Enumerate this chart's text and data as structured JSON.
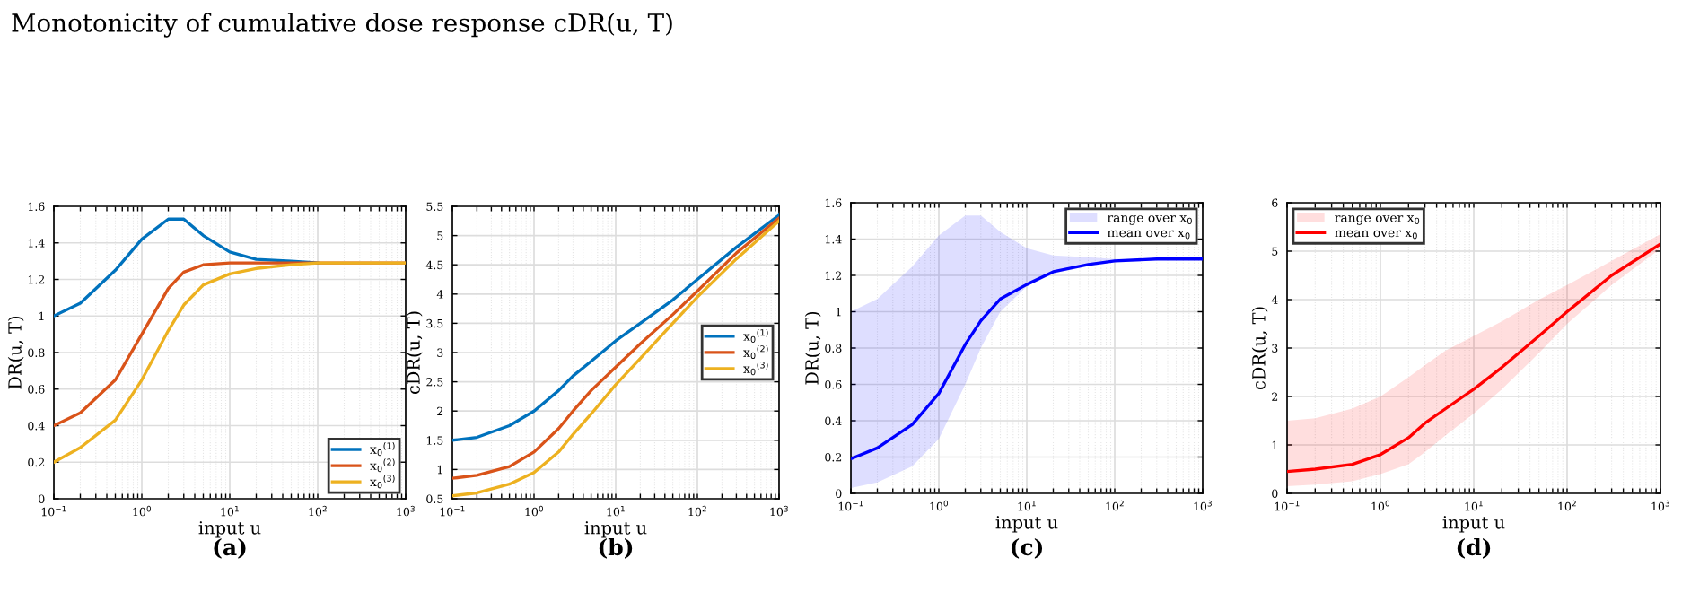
{
  "chart_data": [
    {
      "type": "line",
      "title": "Monotonicity of cumulative dose response cDR(u, T)",
      "xlabel": "input u",
      "ylabel": "DR(u, T)",
      "annotations": [
        "(a)"
      ],
      "log": "x",
      "grid": true,
      "legend": "bottom right",
      "x": [
        0.1,
        0.2,
        0.5,
        1,
        2,
        3,
        5,
        10,
        20,
        50,
        100,
        300,
        1000
      ],
      "xlim": [
        0.1,
        1000
      ],
      "xticks": [
        {
          "value": 0.1,
          "label": "10$^{−1}$"
        },
        {
          "value": 1,
          "label": "10$^{0}$"
        },
        {
          "value": 10,
          "label": "10$^{1}$"
        },
        {
          "value": 100,
          "label": "10$^{2}$"
        },
        {
          "value": 1000,
          "label": "10$^{3}$"
        }
      ],
      "ylim": [
        0,
        1.6
      ],
      "yticks": [
        0,
        0.2,
        0.4,
        0.6,
        0.8,
        1,
        1.2,
        1.4,
        1.6
      ],
      "series": [
        {
          "name": "x$_{0}$$^{(1)}$",
          "color": "#0072bd",
          "values": [
            1.0,
            1.07,
            1.25,
            1.42,
            1.53,
            1.53,
            1.44,
            1.35,
            1.31,
            1.3,
            1.29,
            null,
            null
          ]
        },
        {
          "name": "x$_{0}$$^{(2)}$",
          "color": "#d95319",
          "values": [
            0.4,
            0.47,
            0.65,
            0.9,
            1.15,
            1.24,
            1.28,
            1.29,
            1.29,
            1.29,
            1.29,
            1.29,
            1.29
          ]
        },
        {
          "name": "x$_{0}$$^{(3)}$",
          "color": "#edb120",
          "values": [
            0.2,
            0.28,
            0.43,
            0.65,
            0.92,
            1.06,
            1.17,
            1.23,
            1.26,
            1.28,
            1.29,
            1.29,
            1.29
          ]
        }
      ]
    },
    {
      "type": "line",
      "xlabel": "input u",
      "ylabel": "cDR(u, T)",
      "annotations": [
        "(b)"
      ],
      "log": "x",
      "grid": true,
      "legend": "right",
      "x": [
        0.1,
        0.2,
        0.5,
        1,
        2,
        3,
        5,
        10,
        20,
        50,
        100,
        300,
        1000
      ],
      "xlim": [
        0.1,
        1000
      ],
      "xticks": [
        {
          "value": 0.1,
          "label": "10$^{−1}$"
        },
        {
          "value": 1,
          "label": "10$^{0}$"
        },
        {
          "value": 10,
          "label": "10$^{1}$"
        },
        {
          "value": 100,
          "label": "10$^{2}$"
        },
        {
          "value": 1000,
          "label": "10$^{3}$"
        }
      ],
      "ylim": [
        0.5,
        5.5
      ],
      "yticks": [
        0.5,
        1,
        1.5,
        2,
        2.5,
        3,
        3.5,
        4,
        4.5,
        5,
        5.5
      ],
      "series": [
        {
          "name": "x$_{0}$$^{(1)}$",
          "color": "#0072bd",
          "values": [
            1.5,
            1.55,
            1.75,
            2.0,
            2.35,
            2.6,
            2.85,
            3.2,
            3.5,
            3.9,
            4.25,
            4.8,
            5.35
          ]
        },
        {
          "name": "x$_{0}$$^{(2)}$",
          "color": "#d95319",
          "values": [
            0.85,
            0.9,
            1.05,
            1.3,
            1.7,
            2.0,
            2.35,
            2.75,
            3.15,
            3.65,
            4.05,
            4.7,
            5.3
          ]
        },
        {
          "name": "x$_{0}$$^{(3)}$",
          "color": "#edb120",
          "values": [
            0.55,
            0.6,
            0.75,
            0.95,
            1.3,
            1.6,
            1.95,
            2.45,
            2.9,
            3.5,
            3.95,
            4.6,
            5.25
          ]
        }
      ]
    },
    {
      "type": "line",
      "xlabel": "input u",
      "ylabel": "DR(u, T)",
      "annotations": [
        "(c)",
        "range over x$_{0}$"
      ],
      "log": "x",
      "grid": true,
      "legend": "top right",
      "x": [
        0.1,
        0.2,
        0.5,
        1,
        2,
        3,
        5,
        10,
        20,
        50,
        100,
        300,
        1000
      ],
      "xlim": [
        0.1,
        1000
      ],
      "xticks": [
        {
          "value": 0.1,
          "label": "10$^{−1}$"
        },
        {
          "value": 1,
          "label": "10$^{0}$"
        },
        {
          "value": 10,
          "label": "10$^{1}$"
        },
        {
          "value": 100,
          "label": "10$^{2}$"
        },
        {
          "value": 1000,
          "label": "10$^{3}$"
        }
      ],
      "ylim": [
        0,
        1.6
      ],
      "yticks": [
        0,
        0.2,
        0.4,
        0.6,
        0.8,
        1,
        1.2,
        1.4,
        1.6
      ],
      "series": [
        {
          "name": "mean over x$_{0}$",
          "color": "#0000ff",
          "values": [
            0.19,
            0.25,
            0.38,
            0.55,
            0.82,
            0.95,
            1.07,
            1.15,
            1.22,
            1.26,
            1.28,
            1.29,
            1.29
          ],
          "upper": [
            1.0,
            1.07,
            1.25,
            1.42,
            1.53,
            1.53,
            1.44,
            1.35,
            1.31,
            1.3,
            1.29,
            1.29,
            1.29
          ],
          "lower": [
            0.03,
            0.06,
            0.15,
            0.3,
            0.6,
            0.8,
            1.0,
            1.14,
            1.21,
            1.26,
            1.28,
            1.29,
            1.29
          ]
        }
      ]
    },
    {
      "type": "line",
      "xlabel": "input u",
      "ylabel": "cDR(u, T)",
      "annotations": [
        "(d)",
        "range over x$_{0}$"
      ],
      "log": "x",
      "grid": true,
      "legend": "top left",
      "x": [
        0.1,
        0.2,
        0.5,
        1,
        2,
        3,
        5,
        10,
        20,
        50,
        100,
        300,
        1000
      ],
      "xlim": [
        0.1,
        1000
      ],
      "xticks": [
        {
          "value": 0.1,
          "label": "10$^{−1}$"
        },
        {
          "value": 1,
          "label": "10$^{0}$"
        },
        {
          "value": 10,
          "label": "10$^{1}$"
        },
        {
          "value": 100,
          "label": "10$^{2}$"
        },
        {
          "value": 1000,
          "label": "10$^{3}$"
        }
      ],
      "ylim": [
        0,
        6
      ],
      "yticks": [
        0,
        1,
        2,
        3,
        4,
        5,
        6
      ],
      "series": [
        {
          "name": "mean over x$_{0}$",
          "color": "#ff0000",
          "values": [
            0.45,
            0.5,
            0.6,
            0.8,
            1.15,
            1.45,
            1.75,
            2.15,
            2.6,
            3.25,
            3.75,
            4.5,
            5.15
          ],
          "upper": [
            1.5,
            1.55,
            1.75,
            2.0,
            2.4,
            2.65,
            2.95,
            3.25,
            3.55,
            4.0,
            4.3,
            4.8,
            5.35
          ],
          "lower": [
            0.15,
            0.18,
            0.25,
            0.4,
            0.6,
            0.85,
            1.2,
            1.65,
            2.15,
            2.9,
            3.5,
            4.3,
            5.05
          ]
        }
      ]
    }
  ]
}
